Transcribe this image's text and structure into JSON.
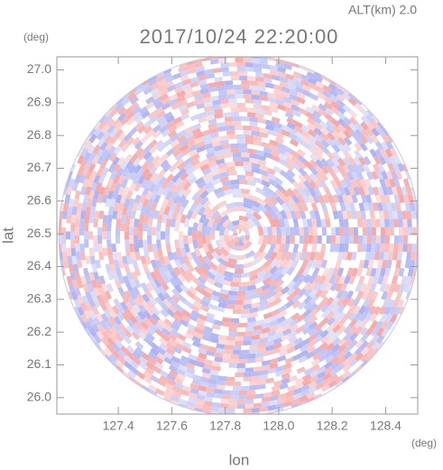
{
  "chart_data": {
    "type": "radar-ppi",
    "title": "2017/10/24 22:20:00",
    "subtitle": "ALT(km) 2.0",
    "x_label": "lon",
    "y_label": "lat",
    "x_unit": "(deg)",
    "y_unit": "(deg)",
    "xlim": [
      127.17,
      128.52
    ],
    "ylim": [
      25.95,
      27.04
    ],
    "xticks": [
      127.4,
      127.6,
      127.8,
      {
        "value": 128.0,
        "label": "128.0"
      },
      128.2,
      128.4
    ],
    "yticks": [
      {
        "value": 26.0,
        "label": "26.0"
      },
      26.1,
      26.2,
      26.3,
      26.4,
      26.5,
      26.6,
      26.7,
      26.8,
      26.9,
      {
        "value": 27.0,
        "label": "27.0"
      }
    ],
    "colors": [
      "#f4a3a3",
      "#a9aef0"
    ]
  }
}
